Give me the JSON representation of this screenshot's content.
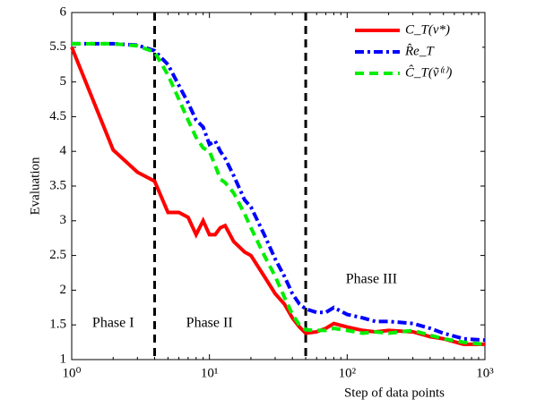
{
  "chart_data": {
    "type": "line",
    "xlabel": "Step of data points",
    "ylabel": "Evaluation",
    "xscale": "log",
    "xlim": [
      1,
      1000
    ],
    "ylim": [
      1,
      6
    ],
    "xticks": [
      {
        "value": 1,
        "label": "10⁰"
      },
      {
        "value": 10,
        "label": "10¹"
      },
      {
        "value": 100,
        "label": "10²"
      },
      {
        "value": 1000,
        "label": "10³"
      }
    ],
    "yticks": [
      1,
      1.5,
      2,
      2.5,
      3,
      3.5,
      4,
      4.5,
      5,
      5.5,
      6
    ],
    "x": [
      1,
      2,
      3,
      4,
      5,
      6,
      7,
      8,
      9,
      10,
      11,
      12,
      13,
      15,
      18,
      20,
      25,
      30,
      35,
      40,
      45,
      50,
      60,
      70,
      80,
      100,
      130,
      160,
      200,
      300,
      400,
      500,
      700,
      1000
    ],
    "series": [
      {
        "name": "C_T(v*)",
        "color": "#ff0000",
        "dash": "solid",
        "values": [
          5.5,
          4.02,
          3.7,
          3.57,
          3.12,
          3.12,
          3.05,
          2.8,
          3.0,
          2.8,
          2.8,
          2.9,
          2.93,
          2.7,
          2.55,
          2.5,
          2.2,
          1.95,
          1.8,
          1.6,
          1.47,
          1.38,
          1.4,
          1.45,
          1.52,
          1.47,
          1.42,
          1.4,
          1.42,
          1.4,
          1.33,
          1.3,
          1.22,
          1.22
        ]
      },
      {
        "name": "R̂e_T",
        "color": "#0000ff",
        "dash": "dashdot",
        "values": [
          5.55,
          5.55,
          5.53,
          5.45,
          5.25,
          4.95,
          4.7,
          4.45,
          4.35,
          4.1,
          4.15,
          4.0,
          3.9,
          3.65,
          3.3,
          3.2,
          2.8,
          2.45,
          2.2,
          1.95,
          1.8,
          1.73,
          1.68,
          1.68,
          1.75,
          1.65,
          1.6,
          1.55,
          1.55,
          1.52,
          1.45,
          1.38,
          1.3,
          1.28
        ]
      },
      {
        "name": "Ĉ_T(ṽ⁽ᵗ⁾)",
        "color": "#00ee00",
        "dash": "dashed",
        "values": [
          5.55,
          5.55,
          5.52,
          5.43,
          5.1,
          4.75,
          4.45,
          4.2,
          4.05,
          4.0,
          3.8,
          3.6,
          3.55,
          3.4,
          3.1,
          2.9,
          2.5,
          2.2,
          1.9,
          1.65,
          1.5,
          1.43,
          1.42,
          1.42,
          1.45,
          1.42,
          1.38,
          1.4,
          1.38,
          1.42,
          1.35,
          1.3,
          1.25,
          1.22
        ]
      }
    ],
    "vlines": [
      4,
      50
    ],
    "annotations": [
      {
        "text": "Phase I",
        "x": 2,
        "y": 1.52
      },
      {
        "text": "Phase II",
        "x": 10,
        "y": 1.52
      },
      {
        "text": "Phase III",
        "x": 150,
        "y": 2.15
      }
    ],
    "legend": "upper right",
    "grid": false
  }
}
